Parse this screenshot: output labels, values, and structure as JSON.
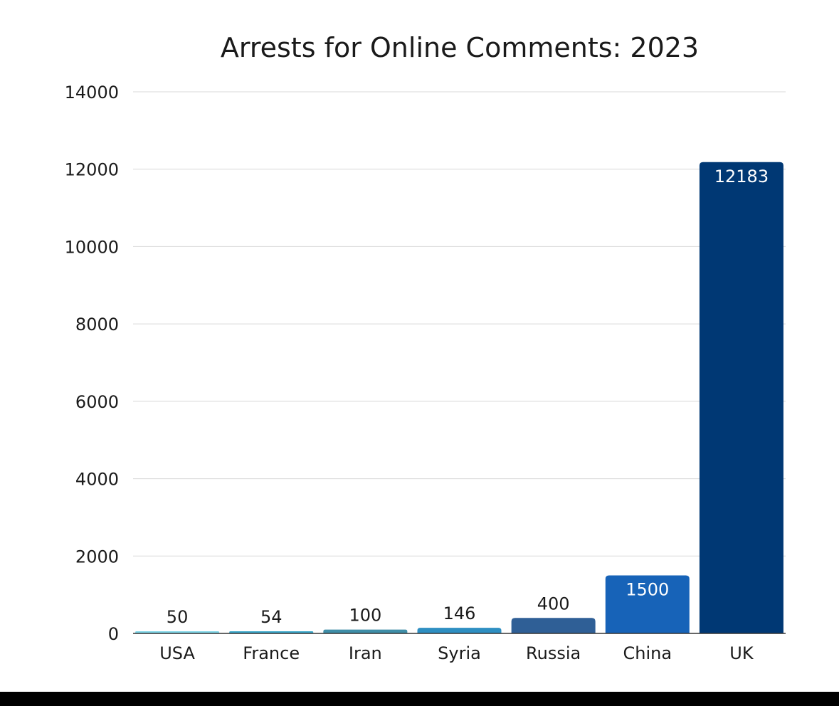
{
  "chart_data": {
    "type": "bar",
    "title": "Arrests for Online Comments: 2023",
    "xlabel": "",
    "ylabel": "",
    "categories": [
      "USA",
      "France",
      "Iran",
      "Syria",
      "Russia",
      "China",
      "UK"
    ],
    "values": [
      50,
      54,
      100,
      146,
      400,
      1500,
      12183
    ],
    "data_labels": [
      "50",
      "54",
      "100",
      "146",
      "400",
      "1500",
      "12183"
    ],
    "colors": [
      "#7fd6e8",
      "#3aa7c9",
      "#3f8ea8",
      "#2e8fc2",
      "#2f5f96",
      "#1763b8",
      "#003874"
    ],
    "ylim": [
      0,
      14000
    ],
    "yticks": [
      0,
      2000,
      4000,
      6000,
      8000,
      10000,
      12000,
      14000
    ],
    "ytick_labels": [
      "0",
      "2000",
      "4000",
      "6000",
      "8000",
      "10000",
      "12000",
      "14000"
    ],
    "grid": true,
    "legend": "none"
  }
}
